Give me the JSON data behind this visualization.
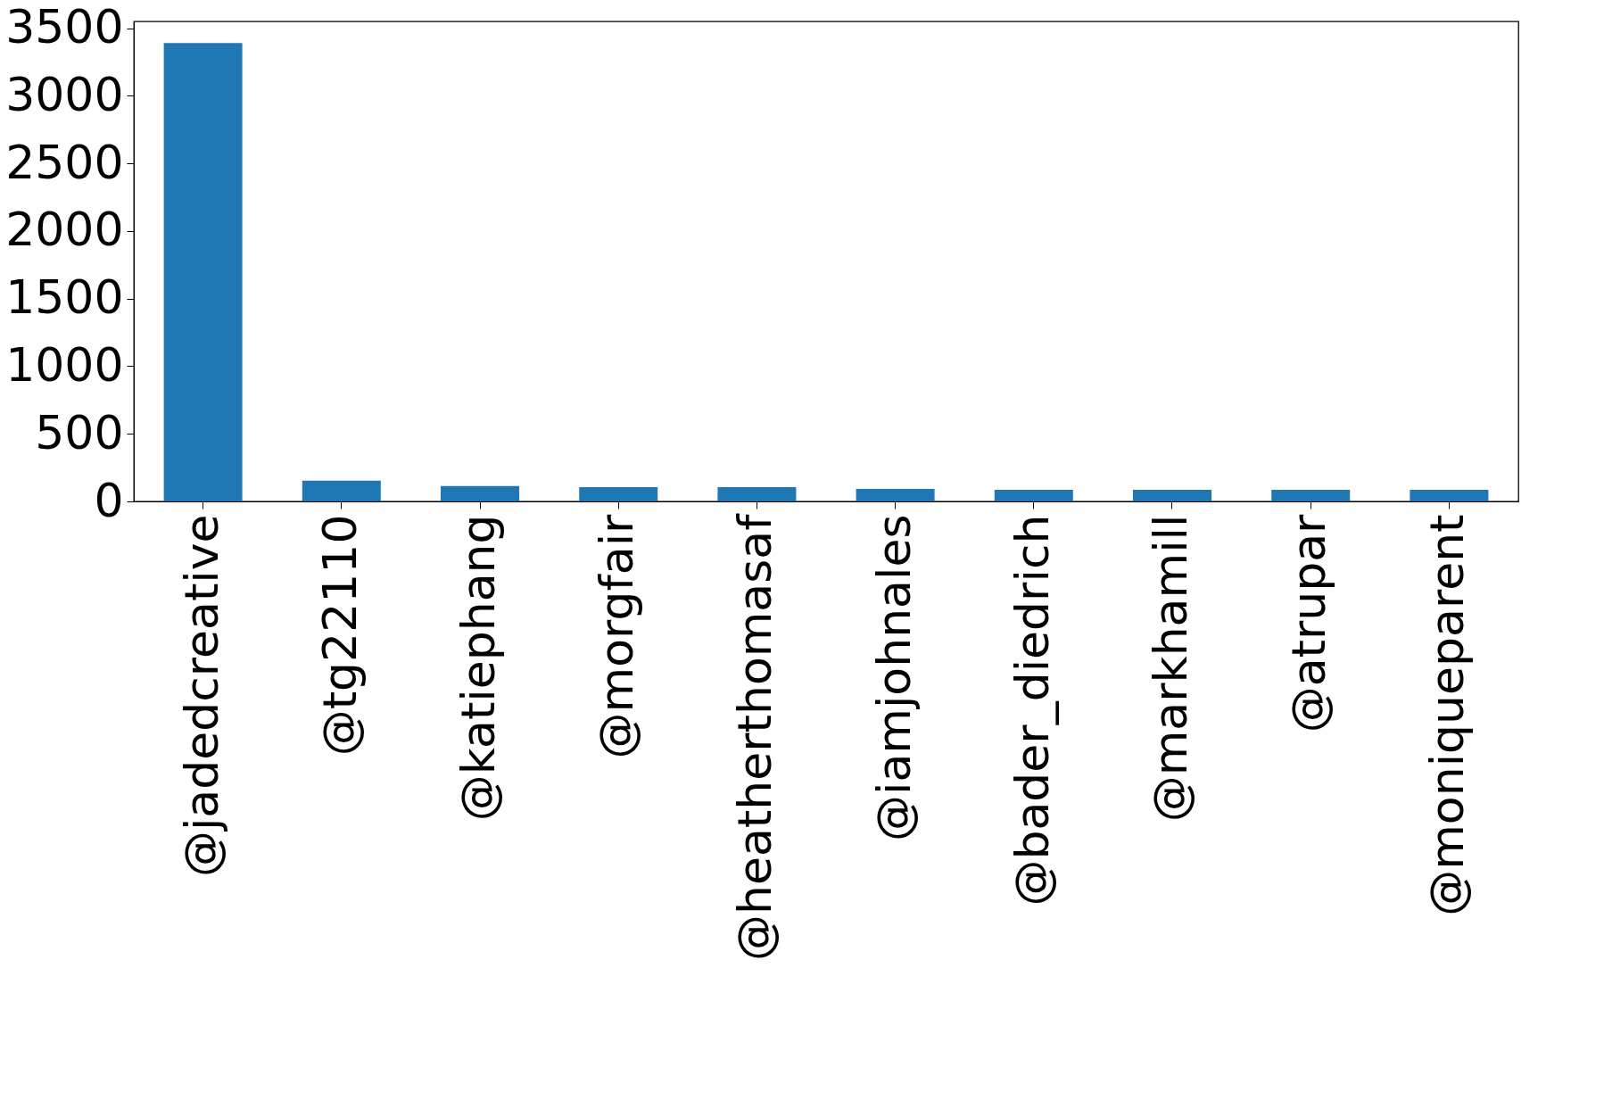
{
  "chart_data": {
    "type": "bar",
    "categories": [
      "@jadedcreative",
      "@tg22110",
      "@katiephang",
      "@morgfair",
      "@heatherthomasaf",
      "@iamjohnales",
      "@bader_diedrich",
      "@markhamill",
      "@atrupar",
      "@moniqueparent"
    ],
    "values": [
      3390,
      153,
      113,
      106,
      106,
      93,
      86,
      86,
      86,
      86
    ],
    "color": "#1f77b4",
    "ylim": [
      0,
      3550
    ],
    "yticks": [
      0,
      500,
      1000,
      1500,
      2000,
      2500,
      3000,
      3500
    ],
    "grid": false
  }
}
